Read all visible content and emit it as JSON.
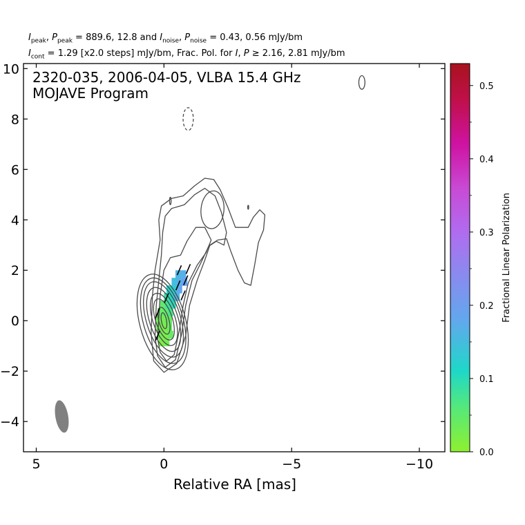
{
  "header": {
    "line1": {
      "i_peak_sym": "I",
      "i_peak_sub": "peak",
      "p_peak_sym": "P",
      "p_peak_sub": "peak",
      "peak_text": " = 889.6, 12.8 and ",
      "i_noise_sym": "I",
      "i_noise_sub": "noise",
      "p_noise_sym": "P",
      "p_noise_sub": "noise",
      "noise_text": " = 0.43, 0.56 mJy/bm"
    },
    "line2": {
      "i_cont_sym": "I",
      "i_cont_sub": "cont",
      "cont_text": " = 1.29 [x2.0 steps] mJy/bm, Frac. Pol. for ",
      "frac_i": "I",
      "frac_p": "P",
      "frac_text": " ≥  2.16, 2.81 mJy/bm"
    }
  },
  "chart_data": {
    "type": "contour",
    "title": "2320-035, 2006-04-05, VLBA 15.4 GHz",
    "subtitle": "MOJAVE Program",
    "xlabel": "Relative RA [mas]",
    "ylabel": "",
    "xlim": [
      5.5,
      -11
    ],
    "ylim": [
      -5.2,
      10.2
    ],
    "x_ticks": [
      5,
      0,
      -5,
      -10
    ],
    "x_tick_labels": [
      "5",
      "0",
      "−5",
      "−10"
    ],
    "y_ticks": [
      -4,
      -2,
      0,
      2,
      4,
      6,
      8,
      10
    ],
    "y_tick_labels": [
      "−4",
      "−2",
      "0",
      "2",
      "4",
      "6",
      "8",
      "10"
    ],
    "contour_base_mJy": 1.29,
    "contour_step_factor": 2.0,
    "contour_color": "#4a4a4a",
    "core_contours": [
      {
        "cx": 0.05,
        "cy": -0.05,
        "rx": 0.9,
        "ry": 1.95,
        "angle_deg": -15
      },
      {
        "cx": 0.03,
        "cy": 0.0,
        "rx": 0.78,
        "ry": 1.75,
        "angle_deg": -16
      },
      {
        "cx": 0.02,
        "cy": 0.05,
        "rx": 0.67,
        "ry": 1.55,
        "angle_deg": -17
      },
      {
        "cx": 0.01,
        "cy": 0.05,
        "rx": 0.56,
        "ry": 1.32,
        "angle_deg": -18
      },
      {
        "cx": 0.0,
        "cy": 0.05,
        "rx": 0.44,
        "ry": 1.08,
        "angle_deg": -18
      },
      {
        "cx": 0.0,
        "cy": 0.05,
        "rx": 0.33,
        "ry": 0.85,
        "angle_deg": -18
      },
      {
        "cx": 0.0,
        "cy": 0.0,
        "rx": 0.2,
        "ry": 0.55,
        "angle_deg": -15
      },
      {
        "cx": 0.0,
        "cy": 0.0,
        "rx": 0.1,
        "ry": 0.32,
        "angle_deg": -10
      }
    ],
    "outer_contour": [
      [
        0.5,
        -0.5
      ],
      [
        0.4,
        -1.6
      ],
      [
        0.0,
        -2.05
      ],
      [
        -0.5,
        -1.7
      ],
      [
        -0.85,
        -0.6
      ],
      [
        -1.0,
        0.6
      ],
      [
        -1.3,
        1.6
      ],
      [
        -1.6,
        2.4
      ],
      [
        -1.8,
        3.0
      ],
      [
        -2.1,
        3.2
      ],
      [
        -2.45,
        3.25
      ],
      [
        -2.6,
        2.8
      ],
      [
        -2.9,
        2.0
      ],
      [
        -3.15,
        1.5
      ],
      [
        -3.4,
        1.4
      ],
      [
        -3.55,
        2.2
      ],
      [
        -3.7,
        3.1
      ],
      [
        -3.9,
        3.6
      ],
      [
        -3.95,
        4.2
      ],
      [
        -3.75,
        4.4
      ],
      [
        -3.5,
        4.1
      ],
      [
        -3.3,
        3.7
      ],
      [
        -2.8,
        3.7
      ],
      [
        -2.5,
        4.5
      ],
      [
        -2.2,
        5.2
      ],
      [
        -1.95,
        5.6
      ],
      [
        -1.6,
        5.65
      ],
      [
        -1.2,
        5.35
      ],
      [
        -0.75,
        4.95
      ],
      [
        -0.3,
        4.85
      ],
      [
        0.1,
        4.55
      ],
      [
        0.2,
        4.0
      ],
      [
        0.15,
        3.2
      ],
      [
        0.35,
        2.0
      ],
      [
        0.45,
        1.0
      ],
      [
        0.5,
        -0.5
      ]
    ],
    "second_contour": [
      [
        0.35,
        -0.6
      ],
      [
        0.25,
        -1.4
      ],
      [
        -0.05,
        -1.85
      ],
      [
        -0.45,
        -1.55
      ],
      [
        -0.7,
        -0.5
      ],
      [
        -0.85,
        0.6
      ],
      [
        -1.1,
        1.6
      ],
      [
        -1.45,
        2.3
      ],
      [
        -1.75,
        2.95
      ],
      [
        -2.05,
        3.15
      ],
      [
        -2.35,
        3.0
      ],
      [
        -2.45,
        3.5
      ],
      [
        -2.25,
        4.3
      ],
      [
        -2.0,
        4.95
      ],
      [
        -1.6,
        5.25
      ],
      [
        -1.2,
        5.0
      ],
      [
        -0.8,
        4.6
      ],
      [
        -0.3,
        4.45
      ],
      [
        -0.05,
        4.15
      ],
      [
        0.05,
        3.5
      ],
      [
        0.1,
        2.6
      ],
      [
        0.2,
        1.6
      ],
      [
        0.3,
        0.6
      ],
      [
        0.35,
        -0.6
      ]
    ],
    "third_contour": [
      [
        0.25,
        -0.7
      ],
      [
        0.15,
        -1.25
      ],
      [
        -0.1,
        -1.6
      ],
      [
        -0.4,
        -1.35
      ],
      [
        -0.6,
        -0.4
      ],
      [
        -0.75,
        0.6
      ],
      [
        -0.95,
        1.5
      ],
      [
        -1.3,
        2.2
      ],
      [
        -1.65,
        2.7
      ],
      [
        -1.85,
        3.2
      ],
      [
        -1.6,
        3.7
      ],
      [
        -1.25,
        3.7
      ],
      [
        -0.9,
        3.15
      ],
      [
        -0.65,
        2.6
      ],
      [
        -0.25,
        2.5
      ],
      [
        0.0,
        2.0
      ],
      [
        0.15,
        1.0
      ],
      [
        0.25,
        -0.7
      ]
    ],
    "hole_contour": {
      "cx": -1.9,
      "cy": 4.4,
      "rx": 0.45,
      "ry": 0.75,
      "angle_deg": 5
    },
    "small_contours": [
      {
        "cx": -7.75,
        "cy": 9.45,
        "rx": 0.12,
        "ry": 0.27,
        "angle_deg": 0,
        "dashed": false
      },
      {
        "cx": -0.95,
        "cy": 8.0,
        "rx": 0.2,
        "ry": 0.45,
        "angle_deg": 0,
        "dashed": true
      },
      {
        "cx": -0.25,
        "cy": 4.75,
        "rx": 0.03,
        "ry": 0.15,
        "angle_deg": 0,
        "dashed": false
      },
      {
        "cx": -3.3,
        "cy": 4.5,
        "rx": 0.02,
        "ry": 0.08,
        "angle_deg": 0,
        "dashed": false
      }
    ],
    "beam": {
      "cx": 4.0,
      "cy": -3.8,
      "rx": 0.25,
      "ry": 0.65,
      "angle_deg": -10,
      "color": "#808080"
    },
    "polarization_pixels": [
      {
        "x": 0.1,
        "y": -0.85,
        "frac": 0.02
      },
      {
        "x": -0.1,
        "y": -0.85,
        "frac": 0.03
      },
      {
        "x": 0.15,
        "y": -0.55,
        "frac": 0.03
      },
      {
        "x": -0.05,
        "y": -0.55,
        "frac": 0.02
      },
      {
        "x": -0.25,
        "y": -0.55,
        "frac": 0.04
      },
      {
        "x": 0.2,
        "y": -0.25,
        "frac": 0.03
      },
      {
        "x": 0.0,
        "y": -0.25,
        "frac": 0.02
      },
      {
        "x": -0.2,
        "y": -0.25,
        "frac": 0.04
      },
      {
        "x": 0.2,
        "y": 0.05,
        "frac": 0.03
      },
      {
        "x": 0.0,
        "y": 0.05,
        "frac": 0.03
      },
      {
        "x": -0.2,
        "y": 0.05,
        "frac": 0.04
      },
      {
        "x": 0.15,
        "y": 0.35,
        "frac": 0.04
      },
      {
        "x": -0.05,
        "y": 0.35,
        "frac": 0.05
      },
      {
        "x": -0.25,
        "y": 0.35,
        "frac": 0.07
      },
      {
        "x": 0.05,
        "y": 0.65,
        "frac": 0.05
      },
      {
        "x": -0.15,
        "y": 0.65,
        "frac": 0.08
      },
      {
        "x": -0.35,
        "y": 0.65,
        "frac": 0.1
      },
      {
        "x": -0.1,
        "y": 0.95,
        "frac": 0.09
      },
      {
        "x": -0.3,
        "y": 0.95,
        "frac": 0.11
      },
      {
        "x": -0.5,
        "y": 0.95,
        "frac": 0.16
      },
      {
        "x": -0.2,
        "y": 1.25,
        "frac": 0.11
      },
      {
        "x": -0.4,
        "y": 1.25,
        "frac": 0.13
      },
      {
        "x": -0.6,
        "y": 1.25,
        "frac": 0.18
      },
      {
        "x": -0.4,
        "y": 1.55,
        "frac": 0.15
      },
      {
        "x": -0.6,
        "y": 1.55,
        "frac": 0.17
      },
      {
        "x": -0.8,
        "y": 1.55,
        "frac": 0.19
      },
      {
        "x": -0.55,
        "y": 1.85,
        "frac": 0.16
      },
      {
        "x": -0.75,
        "y": 1.85,
        "frac": 0.17
      }
    ],
    "evpa_ticks": [
      {
        "x": 0.25,
        "y": -0.6
      },
      {
        "x": 0.25,
        "y": 0.3
      },
      {
        "x": -0.1,
        "y": 0.9
      },
      {
        "x": -0.55,
        "y": 1.4
      },
      {
        "x": -0.75,
        "y": 1.0
      },
      {
        "x": -0.85,
        "y": 1.6
      },
      {
        "x": -0.6,
        "y": 2.0
      },
      {
        "x": -0.95,
        "y": 2.05
      }
    ],
    "colorbar": {
      "label": "Fractional Linear Polarization",
      "range": [
        0.0,
        0.53
      ],
      "ticks": [
        0.0,
        0.1,
        0.2,
        0.3,
        0.4,
        0.5
      ],
      "tick_labels": [
        "0.0",
        "0.1",
        "0.2",
        "0.3",
        "0.4",
        "0.5"
      ],
      "minor_ticks": [
        0.05,
        0.15,
        0.25,
        0.35,
        0.45
      ],
      "stops": [
        {
          "v": 0.0,
          "color": "#8ef02f"
        },
        {
          "v": 0.06,
          "color": "#55e97a"
        },
        {
          "v": 0.11,
          "color": "#1ed8c8"
        },
        {
          "v": 0.18,
          "color": "#62a8ee"
        },
        {
          "v": 0.25,
          "color": "#8f86ef"
        },
        {
          "v": 0.3,
          "color": "#b06cf0"
        },
        {
          "v": 0.36,
          "color": "#c84ad4"
        },
        {
          "v": 0.42,
          "color": "#cf12a2"
        },
        {
          "v": 0.48,
          "color": "#c0104a"
        },
        {
          "v": 0.53,
          "color": "#a8121e"
        }
      ]
    }
  }
}
